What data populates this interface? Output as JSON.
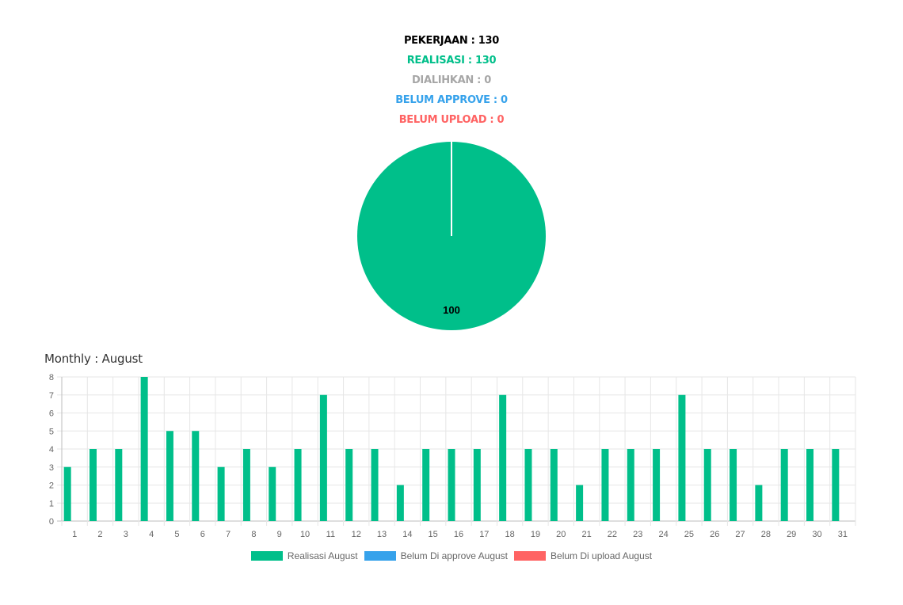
{
  "summary": {
    "pekerjaan": "PEKERJAAN : 130",
    "realisasi": "REALISASI : 130",
    "dialihkan": "DIALIHKAN : 0",
    "belum_approve": "BELUM APPROVE : 0",
    "belum_upload": "BELUM UPLOAD : 0"
  },
  "colors": {
    "pekerjaan": "#000000",
    "realisasi": "#00bf8a",
    "dialihkan": "#a6a6a6",
    "belum_approve": "#36a2eb",
    "belum_upload": "#ff6363"
  },
  "monthly_title": "Monthly : August",
  "chart_data": [
    {
      "type": "pie",
      "slices": [
        {
          "label": "",
          "value": 100,
          "color": "#00bf8a"
        }
      ],
      "data_labels": [
        "100"
      ]
    },
    {
      "type": "bar",
      "title": "",
      "categories": [
        "1",
        "2",
        "3",
        "4",
        "5",
        "6",
        "7",
        "8",
        "9",
        "10",
        "11",
        "12",
        "13",
        "14",
        "15",
        "16",
        "17",
        "18",
        "19",
        "20",
        "21",
        "22",
        "23",
        "24",
        "25",
        "26",
        "27",
        "28",
        "29",
        "30",
        "31"
      ],
      "series": [
        {
          "name": "Realisasi August",
          "color": "#00bf8a",
          "values": [
            3,
            4,
            4,
            8,
            5,
            5,
            3,
            4,
            3,
            4,
            7,
            4,
            4,
            2,
            4,
            4,
            4,
            7,
            4,
            4,
            2,
            4,
            4,
            4,
            7,
            4,
            4,
            2,
            4,
            4,
            4
          ]
        },
        {
          "name": "Belum Di approve August",
          "color": "#36a2eb",
          "values": [
            0,
            0,
            0,
            0,
            0,
            0,
            0,
            0,
            0,
            0,
            0,
            0,
            0,
            0,
            0,
            0,
            0,
            0,
            0,
            0,
            0,
            0,
            0,
            0,
            0,
            0,
            0,
            0,
            0,
            0,
            0
          ]
        },
        {
          "name": "Belum Di upload August",
          "color": "#ff6363",
          "values": [
            0,
            0,
            0,
            0,
            0,
            0,
            0,
            0,
            0,
            0,
            0,
            0,
            0,
            0,
            0,
            0,
            0,
            0,
            0,
            0,
            0,
            0,
            0,
            0,
            0,
            0,
            0,
            0,
            0,
            0,
            0
          ]
        }
      ],
      "yticks": [
        "0",
        "1",
        "2",
        "3",
        "4",
        "5",
        "6",
        "7",
        "8"
      ],
      "ylim": [
        0,
        8
      ],
      "grid": true,
      "legend_position": "bottom"
    }
  ]
}
